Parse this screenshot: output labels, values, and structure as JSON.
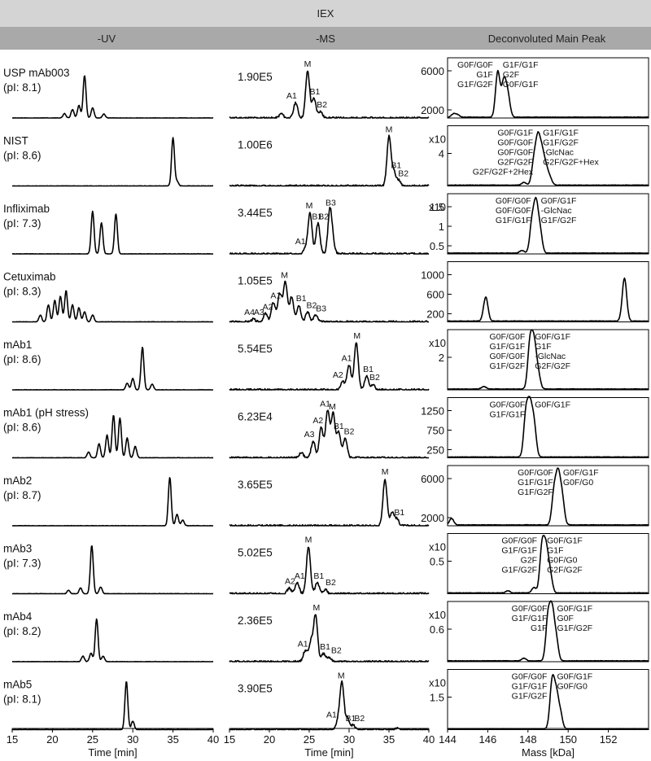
{
  "header": {
    "title": "IEX",
    "columns": [
      "-UV",
      "-MS",
      "Deconvoluted Main Peak"
    ]
  },
  "axes": {
    "uv": {
      "ticks": [
        "15",
        "20",
        "25",
        "30",
        "35",
        "40"
      ],
      "label": "Time [min]",
      "range": [
        15,
        40
      ]
    },
    "ms": {
      "ticks": [
        "15",
        "20",
        "25",
        "30",
        "35",
        "40"
      ],
      "label": "Time [min]",
      "range": [
        15,
        40
      ]
    },
    "mass": {
      "ticks": [
        "144",
        "146",
        "148",
        "150",
        "152"
      ],
      "label": "Mass [kDa]",
      "range": [
        144,
        154
      ]
    }
  },
  "chart_data": {
    "type": "line",
    "title": "IEX",
    "panels": [
      {
        "sample": "USP mAb003",
        "pi": "(pI: 8.1)",
        "intensity": "1.90E5",
        "uv_peaks": [
          [
            21.5,
            0.08
          ],
          [
            22.5,
            0.15
          ],
          [
            23.3,
            0.22
          ],
          [
            24.0,
            0.75
          ],
          [
            25.0,
            0.18
          ],
          [
            26.4,
            0.07
          ]
        ],
        "ms_peaks": [
          [
            21.5,
            0.08
          ],
          [
            23.3,
            0.28
          ],
          [
            24.8,
            0.85
          ],
          [
            25.6,
            0.35
          ],
          [
            26.4,
            0.12
          ]
        ],
        "ms_labels": [
          {
            "t": "M",
            "x": 24.8
          },
          {
            "t": "A1",
            "x": 22.8
          },
          {
            "t": "B1",
            "x": 25.7
          },
          {
            "t": "B2",
            "x": 26.6
          }
        ],
        "mass_peaks": [
          [
            144.3,
            0.06
          ],
          [
            144.5,
            0.04
          ],
          [
            146.5,
            0.85
          ],
          [
            146.8,
            0.65
          ],
          [
            147.0,
            0.4
          ]
        ],
        "mass_ticks": [
          "6000",
          "2000"
        ],
        "exponent": "",
        "mass_labels": [
          "G0F/G0F",
          "G1F/G1F",
          "G1F",
          "G2F",
          "G1F/G2F",
          "G0F/G1F"
        ]
      },
      {
        "sample": "NIST",
        "pi": "(pI: 8.6)",
        "intensity": "1.00E6",
        "uv_peaks": [
          [
            35.0,
            0.85
          ],
          [
            35.5,
            0.08
          ]
        ],
        "ms_peaks": [
          [
            35.0,
            0.9
          ],
          [
            35.6,
            0.25
          ],
          [
            36.2,
            0.1
          ]
        ],
        "ms_labels": [
          {
            "t": "M",
            "x": 35.0
          },
          {
            "t": "B1",
            "x": 35.9
          },
          {
            "t": "B2",
            "x": 36.8
          }
        ],
        "mass_peaks": [
          [
            147.8,
            0.05
          ],
          [
            148.3,
            0.45
          ],
          [
            148.5,
            0.8
          ],
          [
            148.7,
            0.55
          ],
          [
            148.9,
            0.3
          ],
          [
            149.1,
            0.12
          ]
        ],
        "mass_ticks": [
          "4"
        ],
        "exponent": "x10",
        "mass_labels": [
          "G0F/G1F",
          "G1F/G1F",
          "G0F/G0F",
          "G1F/G2F",
          "G0F/G0F",
          "-GlcNac",
          "G2F/G2F",
          "G2F/G2F+Hex",
          "G2F/G2F+2Hex"
        ]
      },
      {
        "sample": "Infliximab",
        "pi": "(pI: 7.3)",
        "intensity": "3.44E5",
        "uv_peaks": [
          [
            25.0,
            0.75
          ],
          [
            26.1,
            0.55
          ],
          [
            27.9,
            0.7
          ]
        ],
        "ms_peaks": [
          [
            24.5,
            0.1
          ],
          [
            25.1,
            0.75
          ],
          [
            26.1,
            0.55
          ],
          [
            27.6,
            0.8
          ],
          [
            28.0,
            0.15
          ]
        ],
        "ms_labels": [
          {
            "t": "M",
            "x": 25.0
          },
          {
            "t": "B1",
            "x": 26.0
          },
          {
            "t": "B3",
            "x": 27.7
          },
          {
            "t": "A1",
            "x": 23.9
          },
          {
            "t": "B2",
            "x": 26.8
          }
        ],
        "mass_peaks": [
          [
            147.7,
            0.05
          ],
          [
            148.2,
            0.55
          ],
          [
            148.4,
            0.85
          ],
          [
            148.6,
            0.4
          ]
        ],
        "mass_ticks": [
          "1.5",
          "1",
          "0.5"
        ],
        "exponent": "x10",
        "mass_labels": [
          "G0F/G0F",
          "G0F/G1F",
          "G0F/G0F",
          "-GlcNac",
          "G1F/G1F",
          "G1F/G2F"
        ]
      },
      {
        "sample": "Cetuximab",
        "pi": "(pI: 8.3)",
        "intensity": "1.05E5",
        "uv_peaks": [
          [
            18.5,
            0.12
          ],
          [
            19.5,
            0.3
          ],
          [
            20.3,
            0.38
          ],
          [
            21.0,
            0.45
          ],
          [
            21.7,
            0.55
          ],
          [
            22.5,
            0.3
          ],
          [
            23.3,
            0.25
          ],
          [
            24.0,
            0.18
          ],
          [
            25.0,
            0.12
          ]
        ],
        "ms_peaks": [
          [
            18.0,
            0.05
          ],
          [
            19.5,
            0.15
          ],
          [
            20.5,
            0.35
          ],
          [
            21.3,
            0.5
          ],
          [
            22.0,
            0.72
          ],
          [
            22.8,
            0.45
          ],
          [
            23.7,
            0.3
          ],
          [
            24.8,
            0.18
          ],
          [
            25.8,
            0.12
          ]
        ],
        "ms_labels": [
          {
            "t": "M",
            "x": 21.9
          },
          {
            "t": "A1",
            "x": 20.8
          },
          {
            "t": "A2",
            "x": 19.8
          },
          {
            "t": "A3",
            "x": 18.7
          },
          {
            "t": "A4",
            "x": 17.5
          },
          {
            "t": "B1",
            "x": 24.0
          },
          {
            "t": "B2",
            "x": 25.3
          },
          {
            "t": "B3",
            "x": 26.5
          }
        ],
        "mass_peaks": [
          [
            145.9,
            0.45
          ],
          [
            152.8,
            0.8
          ]
        ],
        "mass_ticks": [
          "1000",
          "600",
          "200"
        ],
        "exponent": "",
        "mass_labels": []
      },
      {
        "sample": "mAb1",
        "pi": "(pI: 8.6)",
        "intensity": "5.54E5",
        "uv_peaks": [
          [
            29.3,
            0.12
          ],
          [
            30.0,
            0.2
          ],
          [
            31.2,
            0.75
          ],
          [
            32.4,
            0.1
          ]
        ],
        "ms_peaks": [
          [
            29.2,
            0.15
          ],
          [
            30.0,
            0.45
          ],
          [
            30.9,
            0.85
          ],
          [
            32.2,
            0.25
          ],
          [
            33.0,
            0.1
          ]
        ],
        "ms_labels": [
          {
            "t": "M",
            "x": 31.0
          },
          {
            "t": "A1",
            "x": 29.7
          },
          {
            "t": "A2",
            "x": 28.6
          },
          {
            "t": "B1",
            "x": 32.4
          },
          {
            "t": "B2",
            "x": 33.2
          }
        ],
        "mass_peaks": [
          [
            145.8,
            0.05
          ],
          [
            148.1,
            0.85
          ],
          [
            148.3,
            0.8
          ],
          [
            148.5,
            0.3
          ]
        ],
        "mass_ticks": [
          "2"
        ],
        "exponent": "x10",
        "mass_labels": [
          "G0F/G0F",
          "G0F/G1F",
          "G1F/G1F",
          "G1F",
          "G0F/G0F",
          "-GlcNac",
          "G1F/G2F",
          "G2F/G2F"
        ]
      },
      {
        "sample": "mAb1 (pH stress)",
        "pi": "(pI: 8.6)",
        "intensity": "6.23E4",
        "uv_peaks": [
          [
            24.5,
            0.1
          ],
          [
            25.8,
            0.25
          ],
          [
            26.8,
            0.4
          ],
          [
            27.6,
            0.75
          ],
          [
            28.4,
            0.7
          ],
          [
            29.3,
            0.35
          ],
          [
            30.3,
            0.2
          ]
        ],
        "ms_peaks": [
          [
            24.0,
            0.1
          ],
          [
            25.5,
            0.3
          ],
          [
            26.5,
            0.55
          ],
          [
            27.3,
            0.85
          ],
          [
            28.0,
            0.8
          ],
          [
            28.7,
            0.45
          ],
          [
            29.5,
            0.35
          ]
        ],
        "ms_labels": [
          {
            "t": "A1",
            "x": 27.0
          },
          {
            "t": "M",
            "x": 27.9
          },
          {
            "t": "A2",
            "x": 26.1
          },
          {
            "t": "A3",
            "x": 25.0
          },
          {
            "t": "B1",
            "x": 28.7
          },
          {
            "t": "B2",
            "x": 30.0
          }
        ],
        "mass_peaks": [
          [
            147.9,
            0.8
          ],
          [
            148.1,
            0.85
          ],
          [
            148.3,
            0.6
          ]
        ],
        "mass_ticks": [
          "1250",
          "750",
          "250"
        ],
        "exponent": "",
        "mass_labels": [
          "G0F/G0F",
          "G0F/G1F",
          "G1F/G1F"
        ]
      },
      {
        "sample": "mAb2",
        "pi": "(pI: 8.7)",
        "intensity": "3.65E5",
        "uv_peaks": [
          [
            34.6,
            0.85
          ],
          [
            35.5,
            0.2
          ],
          [
            36.2,
            0.1
          ]
        ],
        "ms_peaks": [
          [
            34.5,
            0.85
          ],
          [
            35.4,
            0.25
          ],
          [
            36.0,
            0.12
          ]
        ],
        "ms_labels": [
          {
            "t": "M",
            "x": 34.5
          },
          {
            "t": "B1",
            "x": 36.3
          }
        ],
        "mass_peaks": [
          [
            144.2,
            0.12
          ],
          [
            149.3,
            0.6
          ],
          [
            149.5,
            0.85
          ],
          [
            149.7,
            0.5
          ]
        ],
        "mass_ticks": [
          "6000",
          "2000"
        ],
        "exponent": "",
        "mass_labels": [
          "G0F/G0F",
          "G0F/G1F",
          "G1F/G1F",
          "G0F/G0",
          "G1F/G2F"
        ]
      },
      {
        "sample": "mAb3",
        "pi": "(pI: 7.3)",
        "intensity": "5.02E5",
        "uv_peaks": [
          [
            22.0,
            0.06
          ],
          [
            23.5,
            0.1
          ],
          [
            24.9,
            0.85
          ],
          [
            26.0,
            0.12
          ]
        ],
        "ms_peaks": [
          [
            22.5,
            0.1
          ],
          [
            23.5,
            0.2
          ],
          [
            24.9,
            0.85
          ],
          [
            26.0,
            0.2
          ],
          [
            27.0,
            0.08
          ]
        ],
        "ms_labels": [
          {
            "t": "M",
            "x": 24.9
          },
          {
            "t": "A1",
            "x": 23.8
          },
          {
            "t": "A2",
            "x": 22.6
          },
          {
            "t": "B1",
            "x": 26.2
          },
          {
            "t": "B2",
            "x": 27.7
          }
        ],
        "mass_peaks": [
          [
            147.0,
            0.04
          ],
          [
            148.3,
            0.1
          ],
          [
            148.7,
            0.85
          ],
          [
            148.9,
            0.75
          ],
          [
            149.1,
            0.35
          ]
        ],
        "mass_ticks": [
          "0.5"
        ],
        "exponent": "x10",
        "mass_labels": [
          "G0F/G0F",
          "G0F/G1F",
          "G1F/G1F",
          "G1F",
          "G2F",
          "G0F/G0",
          "G1F/G2F",
          "G2F/G2F"
        ]
      },
      {
        "sample": "mAb4",
        "pi": "(pI: 8.2)",
        "intensity": "2.36E5",
        "uv_peaks": [
          [
            23.8,
            0.1
          ],
          [
            24.8,
            0.15
          ],
          [
            25.5,
            0.75
          ],
          [
            26.3,
            0.1
          ]
        ],
        "ms_peaks": [
          [
            24.5,
            0.2
          ],
          [
            25.2,
            0.35
          ],
          [
            25.8,
            0.85
          ],
          [
            26.8,
            0.15
          ],
          [
            27.5,
            0.08
          ]
        ],
        "ms_labels": [
          {
            "t": "M",
            "x": 25.9
          },
          {
            "t": "A1",
            "x": 24.2
          },
          {
            "t": "B1",
            "x": 27.0
          },
          {
            "t": "B2",
            "x": 28.4
          }
        ],
        "mass_peaks": [
          [
            147.8,
            0.05
          ],
          [
            149.0,
            0.8
          ],
          [
            149.2,
            0.85
          ],
          [
            149.4,
            0.4
          ]
        ],
        "mass_ticks": [
          "0.6"
        ],
        "exponent": "x10",
        "mass_labels": [
          "G0F/G0F",
          "G0F/G1F",
          "G1F/G1F",
          "G0F",
          "G1F",
          "G1F/G2F"
        ]
      },
      {
        "sample": "mAb5",
        "pi": "(pI: 8.1)",
        "intensity": "3.90E5",
        "uv_peaks": [
          [
            29.2,
            0.85
          ],
          [
            30.0,
            0.15
          ]
        ],
        "ms_peaks": [
          [
            28.6,
            0.15
          ],
          [
            29.1,
            0.85
          ],
          [
            29.8,
            0.2
          ],
          [
            30.5,
            0.08
          ],
          [
            36.0,
            0.03
          ]
        ],
        "ms_labels": [
          {
            "t": "M",
            "x": 29.0
          },
          {
            "t": "A1",
            "x": 27.8
          },
          {
            "t": "B1",
            "x": 30.2
          },
          {
            "t": "B2",
            "x": 31.3
          }
        ],
        "mass_peaks": [
          [
            149.2,
            0.85
          ],
          [
            149.4,
            0.6
          ],
          [
            149.6,
            0.3
          ]
        ],
        "mass_ticks": [
          "1.5"
        ],
        "exponent": "x10",
        "mass_labels": [
          "G0F/G0F",
          "G0F/G1F",
          "G1F/G1F",
          "G0F/G0",
          "G1F/G2F"
        ]
      }
    ]
  }
}
